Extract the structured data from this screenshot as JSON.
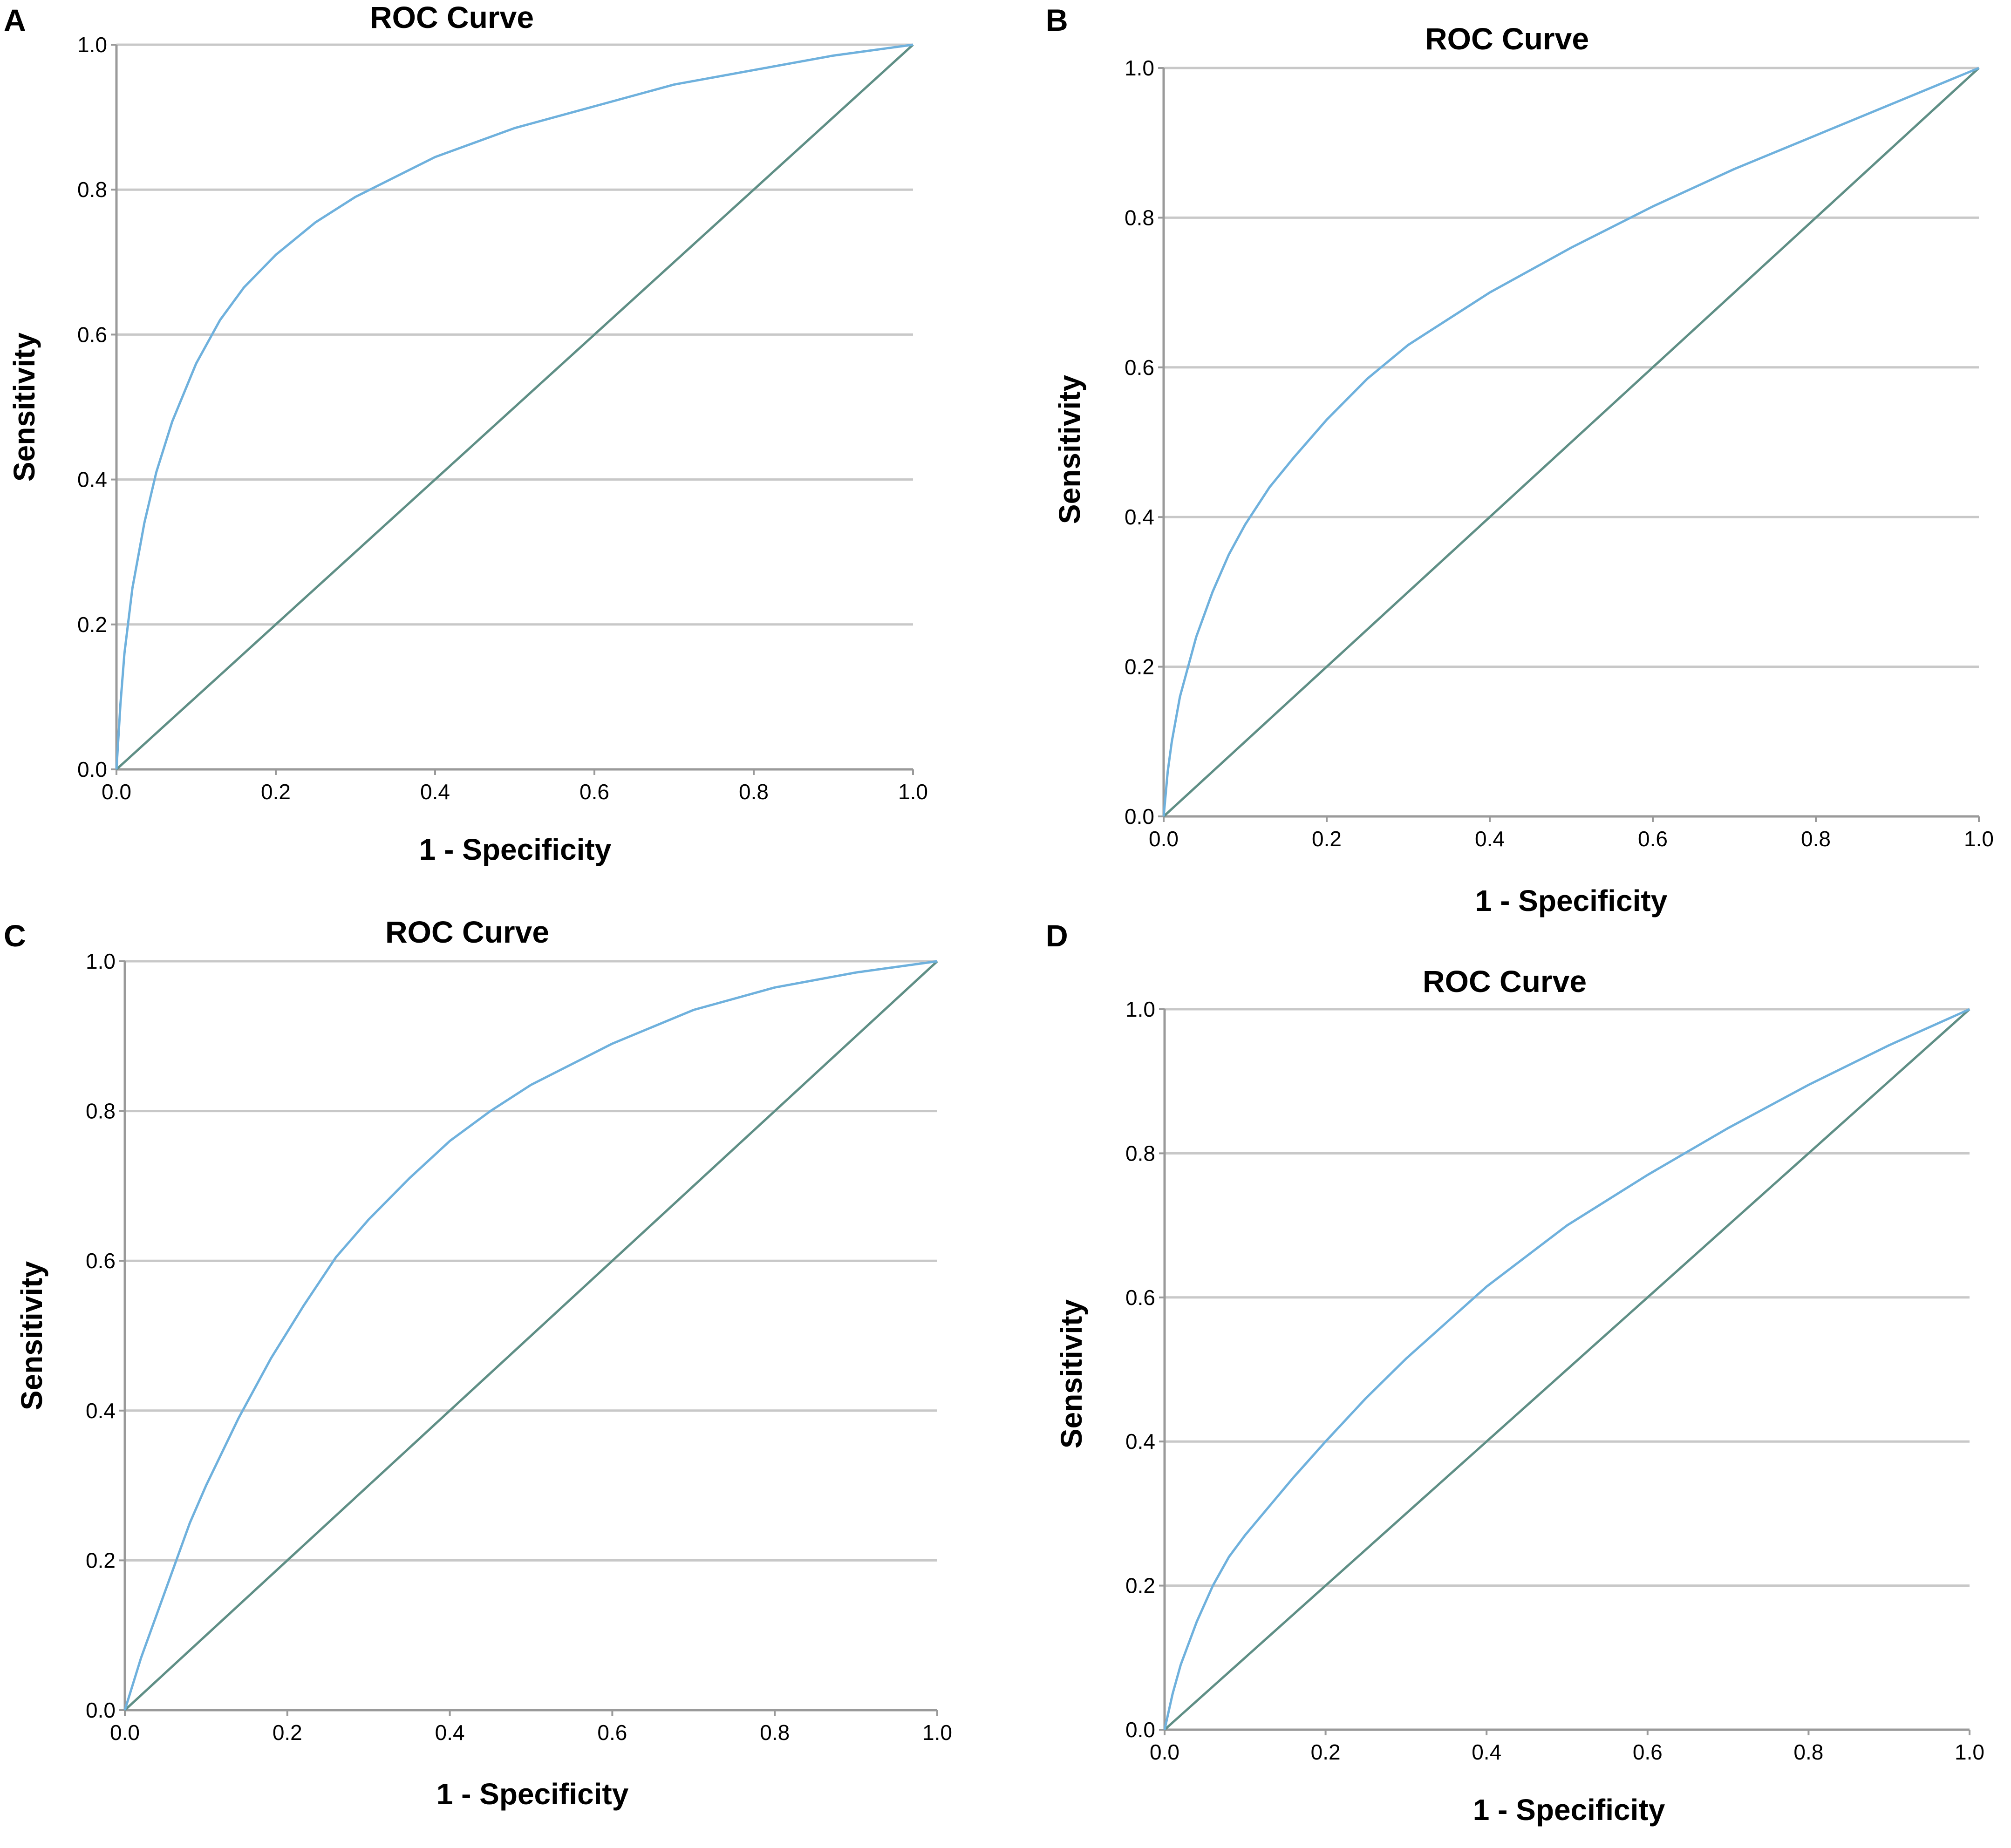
{
  "figure": {
    "colors": {
      "roc_curve": "#6fb1dd",
      "reference_line": "#5f8f86",
      "gridline": "#c8c8c8",
      "axis": "#9a9a9a"
    }
  },
  "chart_data": [
    {
      "panel": "A",
      "type": "line",
      "title": "ROC Curve",
      "xlabel": "1 - Specificity",
      "ylabel": "Sensitivity",
      "xlim": [
        0,
        1
      ],
      "ylim": [
        0,
        1
      ],
      "xticks": [
        "0.0",
        "0.2",
        "0.4",
        "0.6",
        "0.8",
        "1.0"
      ],
      "yticks": [
        "0.0",
        "0.2",
        "0.4",
        "0.6",
        "0.8",
        "1.0"
      ],
      "grid": "horizontal",
      "series": [
        {
          "name": "ROC curve",
          "x": [
            0,
            0.005,
            0.01,
            0.02,
            0.035,
            0.05,
            0.07,
            0.1,
            0.13,
            0.16,
            0.2,
            0.25,
            0.3,
            0.4,
            0.5,
            0.6,
            0.7,
            0.8,
            0.9,
            1.0
          ],
          "y": [
            0,
            0.09,
            0.16,
            0.25,
            0.34,
            0.41,
            0.48,
            0.56,
            0.62,
            0.665,
            0.71,
            0.755,
            0.79,
            0.845,
            0.885,
            0.915,
            0.945,
            0.965,
            0.985,
            1.0
          ]
        },
        {
          "name": "Reference line",
          "x": [
            0,
            1
          ],
          "y": [
            0,
            1
          ]
        }
      ]
    },
    {
      "panel": "B",
      "type": "line",
      "title": "ROC Curve",
      "xlabel": "1 - Specificity",
      "ylabel": "Sensitivity",
      "xlim": [
        0,
        1
      ],
      "ylim": [
        0,
        1
      ],
      "xticks": [
        "0.0",
        "0.2",
        "0.4",
        "0.6",
        "0.8",
        "1.0"
      ],
      "yticks": [
        "0.0",
        "0.2",
        "0.4",
        "0.6",
        "0.8",
        "1.0"
      ],
      "grid": "horizontal",
      "series": [
        {
          "name": "ROC curve",
          "x": [
            0,
            0.005,
            0.01,
            0.02,
            0.04,
            0.06,
            0.08,
            0.1,
            0.13,
            0.16,
            0.2,
            0.25,
            0.3,
            0.4,
            0.5,
            0.6,
            0.7,
            0.8,
            0.9,
            1.0
          ],
          "y": [
            0,
            0.06,
            0.1,
            0.16,
            0.24,
            0.3,
            0.35,
            0.39,
            0.44,
            0.48,
            0.53,
            0.585,
            0.63,
            0.7,
            0.76,
            0.815,
            0.865,
            0.91,
            0.955,
            1.0
          ]
        },
        {
          "name": "Reference line",
          "x": [
            0,
            1
          ],
          "y": [
            0,
            1
          ]
        }
      ]
    },
    {
      "panel": "C",
      "type": "line",
      "title": "ROC Curve",
      "xlabel": "1 - Specificity",
      "ylabel": "Sensitivity",
      "xlim": [
        0,
        1
      ],
      "ylim": [
        0,
        1
      ],
      "xticks": [
        "0.0",
        "0.2",
        "0.4",
        "0.6",
        "0.8",
        "1.0"
      ],
      "yticks": [
        "0.0",
        "0.2",
        "0.4",
        "0.6",
        "0.8",
        "1.0"
      ],
      "grid": "horizontal",
      "series": [
        {
          "name": "ROC curve",
          "x": [
            0,
            0.02,
            0.04,
            0.06,
            0.08,
            0.1,
            0.14,
            0.18,
            0.22,
            0.26,
            0.3,
            0.35,
            0.4,
            0.45,
            0.5,
            0.6,
            0.7,
            0.8,
            0.9,
            1.0
          ],
          "y": [
            0,
            0.07,
            0.13,
            0.19,
            0.25,
            0.3,
            0.39,
            0.47,
            0.54,
            0.605,
            0.655,
            0.71,
            0.76,
            0.8,
            0.835,
            0.89,
            0.935,
            0.965,
            0.985,
            1.0
          ]
        },
        {
          "name": "Reference line",
          "x": [
            0,
            1
          ],
          "y": [
            0,
            1
          ]
        }
      ]
    },
    {
      "panel": "D",
      "type": "line",
      "title": "ROC Curve",
      "xlabel": "1 - Specificity",
      "ylabel": "Sensitivity",
      "xlim": [
        0,
        1
      ],
      "ylim": [
        0,
        1
      ],
      "xticks": [
        "0.0",
        "0.2",
        "0.4",
        "0.6",
        "0.8",
        "1.0"
      ],
      "yticks": [
        "0.0",
        "0.2",
        "0.4",
        "0.6",
        "0.8",
        "1.0"
      ],
      "grid": "horizontal",
      "series": [
        {
          "name": "ROC curve",
          "x": [
            0,
            0.01,
            0.02,
            0.04,
            0.06,
            0.08,
            0.1,
            0.13,
            0.16,
            0.2,
            0.25,
            0.3,
            0.35,
            0.4,
            0.5,
            0.6,
            0.7,
            0.8,
            0.9,
            1.0
          ],
          "y": [
            0,
            0.05,
            0.09,
            0.15,
            0.2,
            0.24,
            0.27,
            0.31,
            0.35,
            0.4,
            0.46,
            0.515,
            0.565,
            0.615,
            0.7,
            0.77,
            0.835,
            0.895,
            0.95,
            1.0
          ]
        },
        {
          "name": "Reference line",
          "x": [
            0,
            1
          ],
          "y": [
            0,
            1
          ]
        }
      ]
    }
  ]
}
